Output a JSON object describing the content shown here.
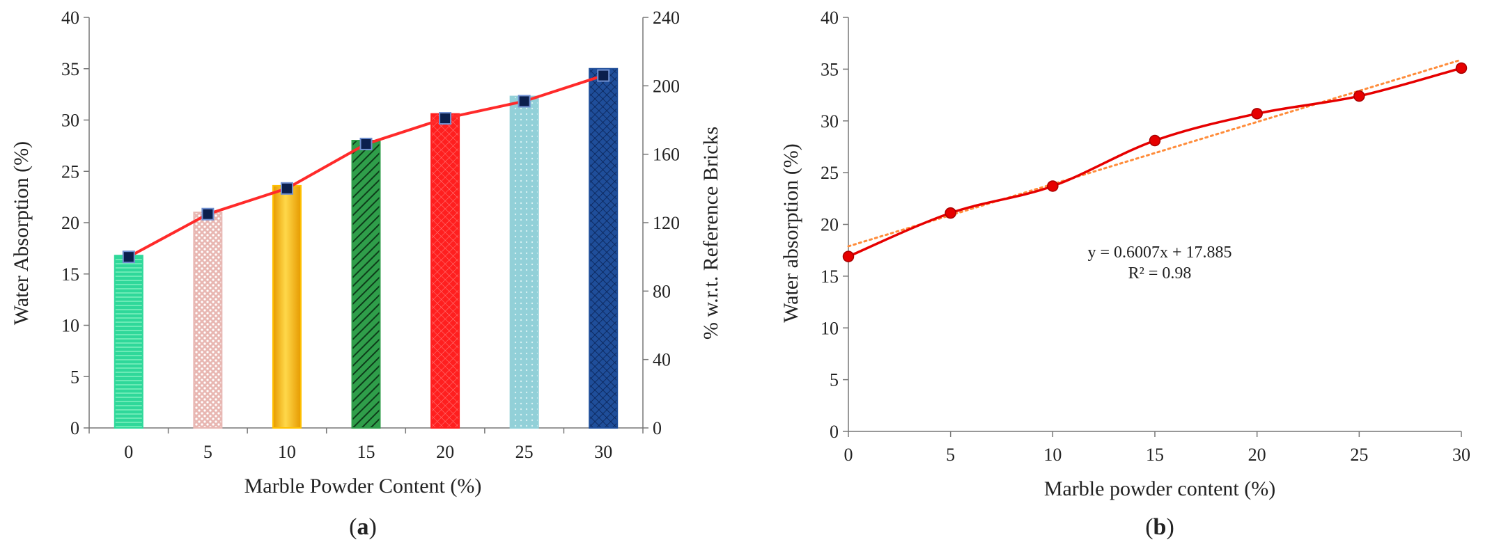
{
  "chart_data": [
    {
      "panel": "(a)",
      "panel_letter": "a",
      "type": "bar",
      "categories": [
        "0",
        "5",
        "10",
        "15",
        "20",
        "25",
        "30"
      ],
      "values": [
        16.8,
        21.0,
        23.6,
        28.0,
        30.6,
        32.3,
        35.0
      ],
      "bar_colors": [
        "#2fd89a",
        "#e8b7b2",
        "#ffc000",
        "#2f9e4a",
        "#ff1f1f",
        "#92d0d8",
        "#1f4e9a"
      ],
      "xlabel": "Marble Powder Content (%)",
      "ylabel": "Water Absorption  (%)",
      "ylim": [
        0,
        40
      ],
      "yticks": [
        "0",
        "5",
        "10",
        "15",
        "20",
        "25",
        "30",
        "35",
        "40"
      ],
      "y2label": "% w.r.t. Reference Bricks",
      "y2lim": [
        0,
        240
      ],
      "y2ticks": [
        "0",
        "40",
        "80",
        "120",
        "160",
        "200",
        "240"
      ],
      "line_series": {
        "axis": "secondary",
        "values": [
          100,
          125,
          140,
          166,
          181,
          191,
          206
        ],
        "line_color": "#ff2a2a",
        "marker_color": "#0b1f4d"
      },
      "grid": false,
      "legend": "none"
    },
    {
      "panel": "(b)",
      "panel_letter": "b",
      "type": "scatter",
      "x": [
        0,
        5,
        10,
        15,
        20,
        25,
        30
      ],
      "y": [
        16.9,
        21.1,
        23.7,
        28.1,
        30.7,
        32.4,
        35.1
      ],
      "xlabel": "Marble powder content (%)",
      "ylabel": "Water absorption  (%)",
      "xlim": [
        0,
        30
      ],
      "xticks": [
        "0",
        "5",
        "10",
        "15",
        "20",
        "25",
        "30"
      ],
      "ylim": [
        0,
        40
      ],
      "yticks": [
        "0",
        "5",
        "10",
        "15",
        "20",
        "25",
        "30",
        "35",
        "40"
      ],
      "line_color": "#e60000",
      "trendline": {
        "slope": 0.6007,
        "intercept": 17.885,
        "color": "#ff8c3a",
        "equation": "y = 0.6007x + 17.885",
        "r2": "R² = 0.98"
      },
      "grid": false,
      "legend": "none"
    }
  ]
}
